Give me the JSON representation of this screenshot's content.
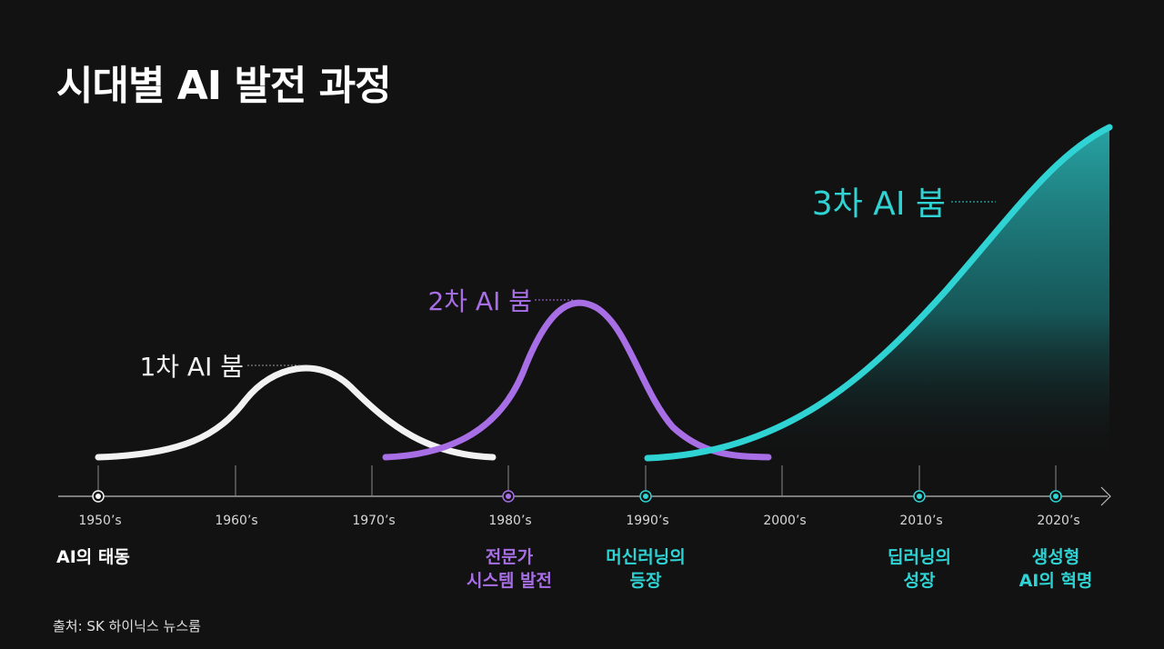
{
  "title": "시대별 AI 발전 과정",
  "colors": {
    "background": "#121212",
    "first_boom": "#f2f2f2",
    "second_boom": "#a86ee6",
    "third_boom": "#2fd3d3",
    "axis": "#bdbdbd"
  },
  "timeline": {
    "ticks": [
      "1950’s",
      "1960’s",
      "1970’s",
      "1980’s",
      "1990’s",
      "2000’s",
      "2010’s",
      "2020’s"
    ]
  },
  "booms": [
    {
      "label": "1차 AI 붐",
      "color": "#f2f2f2"
    },
    {
      "label": "2차 AI 붐",
      "color": "#a86ee6"
    },
    {
      "label": "3차 AI 붐",
      "color": "#2fd3d3"
    }
  ],
  "events": [
    {
      "text": "AI의 태동",
      "color": "#ffffff"
    },
    {
      "text": "전문가\n시스템 발전",
      "color": "#a86ee6"
    },
    {
      "text": "머신러닝의\n등장",
      "color": "#2fd3d3"
    },
    {
      "text": "딥러닝의\n성장",
      "color": "#2fd3d3"
    },
    {
      "text": "생성형\nAI의 혁명",
      "color": "#2fd3d3"
    }
  ],
  "source": "출처: SK 하이닉스 뉴스룸"
}
